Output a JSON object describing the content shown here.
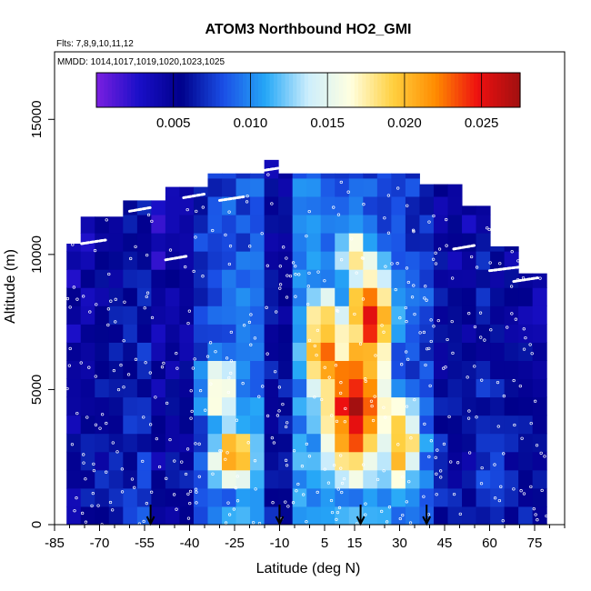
{
  "chart_data": {
    "type": "heatmap",
    "title": "ATOM3 Northbound HO2_GMI",
    "flights_note": "Flts: 7,8,9,10,11,12",
    "dates_note": "MMDD: 1014,1017,1019,1020,1023,1025",
    "xlabel": "Latitude (deg N)",
    "ylabel": "Altitude (m)",
    "xlim": [
      -85,
      85
    ],
    "ylim": [
      0,
      17500
    ],
    "x_ticks": [
      -85,
      -70,
      -55,
      -40,
      -25,
      -10,
      5,
      15,
      30,
      45,
      60,
      75
    ],
    "y_ticks": [
      0,
      5000,
      10000,
      15000
    ],
    "colorbar": {
      "range": [
        0.0,
        0.0275
      ],
      "ticks": [
        0.005,
        0.01,
        0.015,
        0.02,
        0.025
      ],
      "tick_labels": [
        "0.005",
        "0.010",
        "0.015",
        "0.020",
        "0.025"
      ],
      "colors": [
        "#7b1fe0",
        "#1a0fc8",
        "#00008b",
        "#1a4fe6",
        "#26a8f7",
        "#cdeefc",
        "#ffffe0",
        "#ffd040",
        "#ff8c00",
        "#ee1010",
        "#a01010"
      ]
    },
    "field": {
      "lat_cells": 34,
      "alt_cells": 20,
      "lat_range": [
        -81,
        79
      ],
      "alt_range": [
        0,
        13500
      ],
      "top_altitudes": [
        {
          "lat_from": -81,
          "lat_to": -75,
          "alt": 10400
        },
        {
          "lat_from": -75,
          "lat_to": -60,
          "alt": 11400
        },
        {
          "lat_from": -60,
          "lat_to": -50,
          "alt": 12000
        },
        {
          "lat_from": -50,
          "lat_to": -35,
          "alt": 12500
        },
        {
          "lat_from": -35,
          "lat_to": -15,
          "alt": 13000
        },
        {
          "lat_from": -15,
          "lat_to": -10,
          "alt": 13500
        },
        {
          "lat_from": -10,
          "lat_to": 35,
          "alt": 13000
        },
        {
          "lat_from": 35,
          "lat_to": 50,
          "alt": 12600
        },
        {
          "lat_from": 50,
          "lat_to": 60,
          "alt": 11800
        },
        {
          "lat_from": 60,
          "lat_to": 70,
          "alt": 10300
        },
        {
          "lat_from": 70,
          "lat_to": 79,
          "alt": 9300
        }
      ],
      "hot_spots": [
        {
          "lat": 15,
          "alt": 4500,
          "value": 0.026,
          "lat_width": 14,
          "alt_width": 3500
        },
        {
          "lat": 20,
          "alt": 7500,
          "value": 0.024,
          "lat_width": 10,
          "alt_width": 3000
        },
        {
          "lat": 5,
          "alt": 6500,
          "value": 0.022,
          "lat_width": 10,
          "alt_width": 3000
        },
        {
          "lat": -25,
          "alt": 2500,
          "value": 0.022,
          "lat_width": 10,
          "alt_width": 1500
        },
        {
          "lat": 30,
          "alt": 3000,
          "value": 0.02,
          "lat_width": 10,
          "alt_width": 2500
        },
        {
          "lat": -30,
          "alt": 5000,
          "value": 0.018,
          "lat_width": 8,
          "alt_width": 2000
        },
        {
          "lat": 15,
          "alt": 10000,
          "value": 0.018,
          "lat_width": 8,
          "alt_width": 1500
        }
      ]
    },
    "markers": [
      {
        "lat": -53,
        "label": "arrow"
      },
      {
        "lat": -10,
        "label": "arrow"
      },
      {
        "lat": 17,
        "label": "arrow"
      },
      {
        "lat": 39,
        "label": "arrow"
      }
    ]
  }
}
